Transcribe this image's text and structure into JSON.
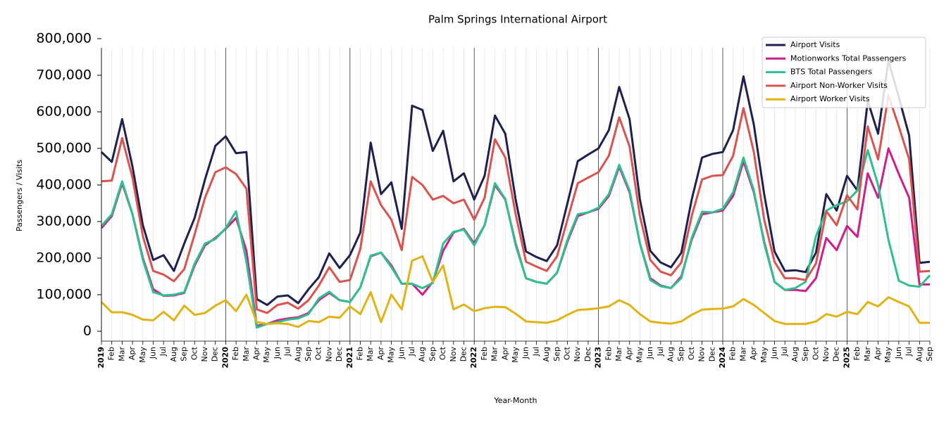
{
  "chart_data": {
    "type": "line",
    "title": "Palm Springs International Airport",
    "x_label": "Year-Month",
    "y_label": "Passengers / Visits",
    "categories": [
      "2019",
      "Feb",
      "Mar",
      "Apr",
      "May",
      "Jun",
      "Jul",
      "Aug",
      "Sep",
      "Oct",
      "Nov",
      "Dec",
      "2020",
      "Feb",
      "Mar",
      "Apr",
      "May",
      "Jun",
      "Jul",
      "Aug",
      "Sep",
      "Oct",
      "Nov",
      "Dec",
      "2021",
      "Feb",
      "Mar",
      "Apr",
      "May",
      "Jun",
      "Jul",
      "Aug",
      "Sep",
      "Oct",
      "Nov",
      "Dec",
      "2022",
      "Feb",
      "Mar",
      "Apr",
      "May",
      "Jun",
      "Jul",
      "Aug",
      "Sep",
      "Oct",
      "Nov",
      "Dec",
      "2023",
      "Feb",
      "Mar",
      "Apr",
      "May",
      "Jun",
      "Jul",
      "Aug",
      "Sep",
      "Oct",
      "Nov",
      "Dec",
      "2024",
      "Feb",
      "Mar",
      "Apr",
      "May",
      "Jun",
      "Jul",
      "Aug",
      "Sep",
      "Oct",
      "Nov",
      "Dec",
      "2025",
      "Feb",
      "Mar",
      "Apr",
      "May",
      "Jun",
      "Jul",
      "Aug",
      "Sep"
    ],
    "ylim": [
      -25000,
      800000
    ],
    "yticks": [
      {
        "value": 0,
        "label": "0"
      },
      {
        "value": 100000,
        "label": "100,000"
      },
      {
        "value": 200000,
        "label": "200,000"
      },
      {
        "value": 300000,
        "label": "300,000"
      },
      {
        "value": 400000,
        "label": "400,000"
      },
      {
        "value": 500000,
        "label": "500,000"
      },
      {
        "value": 600000,
        "label": "600,000"
      },
      {
        "value": 700000,
        "label": "700,000"
      },
      {
        "value": 800000,
        "label": "800,000"
      }
    ],
    "legend": "upper right",
    "series": [
      {
        "name": "Airport Visits",
        "color": "#1f2050",
        "values": [
          490000,
          463000,
          580000,
          450000,
          290000,
          195000,
          208000,
          165000,
          240000,
          310000,
          415000,
          507000,
          533000,
          487000,
          490000,
          88000,
          72000,
          95000,
          98000,
          77000,
          115000,
          148000,
          213000,
          173000,
          208000,
          270000,
          516000,
          375000,
          407000,
          280000,
          617000,
          605000,
          493000,
          548000,
          410000,
          432000,
          360000,
          425000,
          590000,
          540000,
          360000,
          218000,
          203000,
          192000,
          235000,
          350000,
          465000,
          483000,
          500000,
          550000,
          668000,
          580000,
          360000,
          220000,
          188000,
          175000,
          215000,
          360000,
          475000,
          485000,
          490000,
          550000,
          697000,
          565000,
          375000,
          218000,
          165000,
          167000,
          162000,
          215000,
          375000,
          330000,
          425000,
          385000,
          630000,
          540000,
          740000,
          640000,
          535000,
          187000,
          190000
        ]
      },
      {
        "name": "Motionworks Total Passengers",
        "color": "#cc1f8a",
        "values": [
          282000,
          315000,
          405000,
          320000,
          200000,
          115000,
          97000,
          98000,
          105000,
          180000,
          235000,
          255000,
          280000,
          310000,
          220000,
          15000,
          20000,
          30000,
          35000,
          38000,
          50000,
          85000,
          105000,
          85000,
          80000,
          120000,
          205000,
          215000,
          180000,
          130000,
          130000,
          100000,
          135000,
          220000,
          270000,
          280000,
          240000,
          290000,
          400000,
          360000,
          240000,
          145000,
          135000,
          130000,
          160000,
          245000,
          315000,
          325000,
          335000,
          370000,
          450000,
          380000,
          240000,
          145000,
          125000,
          118000,
          150000,
          250000,
          320000,
          325000,
          330000,
          370000,
          465000,
          380000,
          245000,
          135000,
          113000,
          113000,
          110000,
          145000,
          255000,
          222000,
          288000,
          258000,
          432000,
          365000,
          500000,
          430000,
          365000,
          128000,
          128000
        ]
      },
      {
        "name": "BTS Total Passengers",
        "color": "#2ec08e",
        "values": [
          288000,
          320000,
          410000,
          320000,
          195000,
          107000,
          98000,
          100000,
          107000,
          185000,
          240000,
          252000,
          282000,
          328000,
          190000,
          10000,
          20000,
          25000,
          32000,
          35000,
          47000,
          90000,
          108000,
          85000,
          80000,
          120000,
          207000,
          215000,
          175000,
          130000,
          130000,
          118000,
          132000,
          240000,
          272000,
          278000,
          235000,
          290000,
          405000,
          362000,
          235000,
          145000,
          135000,
          130000,
          160000,
          250000,
          320000,
          325000,
          338000,
          375000,
          455000,
          385000,
          240000,
          140000,
          123000,
          118000,
          145000,
          255000,
          327000,
          325000,
          335000,
          380000,
          475000,
          385000,
          240000,
          135000,
          113000,
          118000,
          135000,
          260000,
          330000,
          345000,
          355000,
          385000,
          495000,
          400000,
          250000,
          138000,
          125000,
          122000,
          153000
        ]
      },
      {
        "name": "Airport Non-Worker Visits",
        "color": "#d9534f",
        "values": [
          410000,
          412000,
          528000,
          420000,
          260000,
          165000,
          155000,
          137000,
          170000,
          265000,
          365000,
          435000,
          448000,
          430000,
          390000,
          60000,
          50000,
          72000,
          78000,
          62000,
          85000,
          125000,
          175000,
          135000,
          140000,
          225000,
          410000,
          345000,
          305000,
          222000,
          422000,
          400000,
          360000,
          370000,
          350000,
          360000,
          305000,
          365000,
          525000,
          475000,
          320000,
          190000,
          177000,
          165000,
          205000,
          305000,
          405000,
          420000,
          435000,
          480000,
          585000,
          505000,
          315000,
          195000,
          163000,
          153000,
          188000,
          315000,
          415000,
          425000,
          427000,
          480000,
          610000,
          490000,
          305000,
          190000,
          145000,
          145000,
          140000,
          185000,
          328000,
          290000,
          372000,
          333000,
          560000,
          470000,
          645000,
          560000,
          470000,
          163000,
          165000
        ]
      },
      {
        "name": "Airport Worker Visits",
        "color": "#e0b317",
        "values": [
          80000,
          52000,
          52000,
          45000,
          32000,
          30000,
          53000,
          30000,
          70000,
          45000,
          50000,
          70000,
          85000,
          55000,
          100000,
          25000,
          20000,
          22000,
          20000,
          12000,
          28000,
          25000,
          40000,
          37000,
          68000,
          47000,
          107000,
          25000,
          100000,
          60000,
          193000,
          205000,
          135000,
          180000,
          60000,
          73000,
          55000,
          63000,
          67000,
          66000,
          48000,
          27000,
          25000,
          23000,
          30000,
          45000,
          58000,
          60000,
          63000,
          68000,
          85000,
          72000,
          47000,
          27000,
          23000,
          21000,
          27000,
          45000,
          59000,
          61000,
          62000,
          68000,
          88000,
          72000,
          50000,
          28000,
          20000,
          20000,
          20000,
          27000,
          47000,
          40000,
          53000,
          47000,
          80000,
          68000,
          93000,
          80000,
          68000,
          23000,
          23000
        ]
      }
    ]
  }
}
